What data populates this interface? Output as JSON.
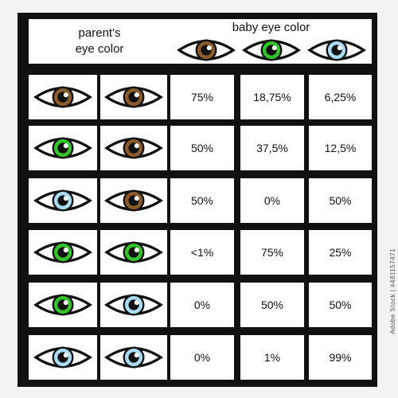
{
  "header": {
    "parents_line1": "parent's",
    "parents_line2": "eye color",
    "baby": "baby eye color",
    "baby_eyes": [
      "brown",
      "green",
      "blue"
    ]
  },
  "colors": {
    "brown": "#8b5a2b",
    "green": "#35c32a",
    "blue": "#a9dcf2"
  },
  "rows": [
    {
      "parents": [
        "brown",
        "brown"
      ],
      "values": [
        "75%",
        "18,75%",
        "6,25%"
      ]
    },
    {
      "parents": [
        "green",
        "brown"
      ],
      "values": [
        "50%",
        "37,5%",
        "12,5%"
      ]
    },
    {
      "parents": [
        "blue",
        "brown"
      ],
      "values": [
        "50%",
        "0%",
        "50%"
      ]
    },
    {
      "parents": [
        "green",
        "green"
      ],
      "values": [
        "<1%",
        "75%",
        "25%"
      ]
    },
    {
      "parents": [
        "green",
        "blue"
      ],
      "values": [
        "0%",
        "50%",
        "50%"
      ]
    },
    {
      "parents": [
        "blue",
        "blue"
      ],
      "values": [
        "0%",
        "1%",
        "99%"
      ]
    }
  ],
  "watermark": "Adobe Stock | #481157471"
}
